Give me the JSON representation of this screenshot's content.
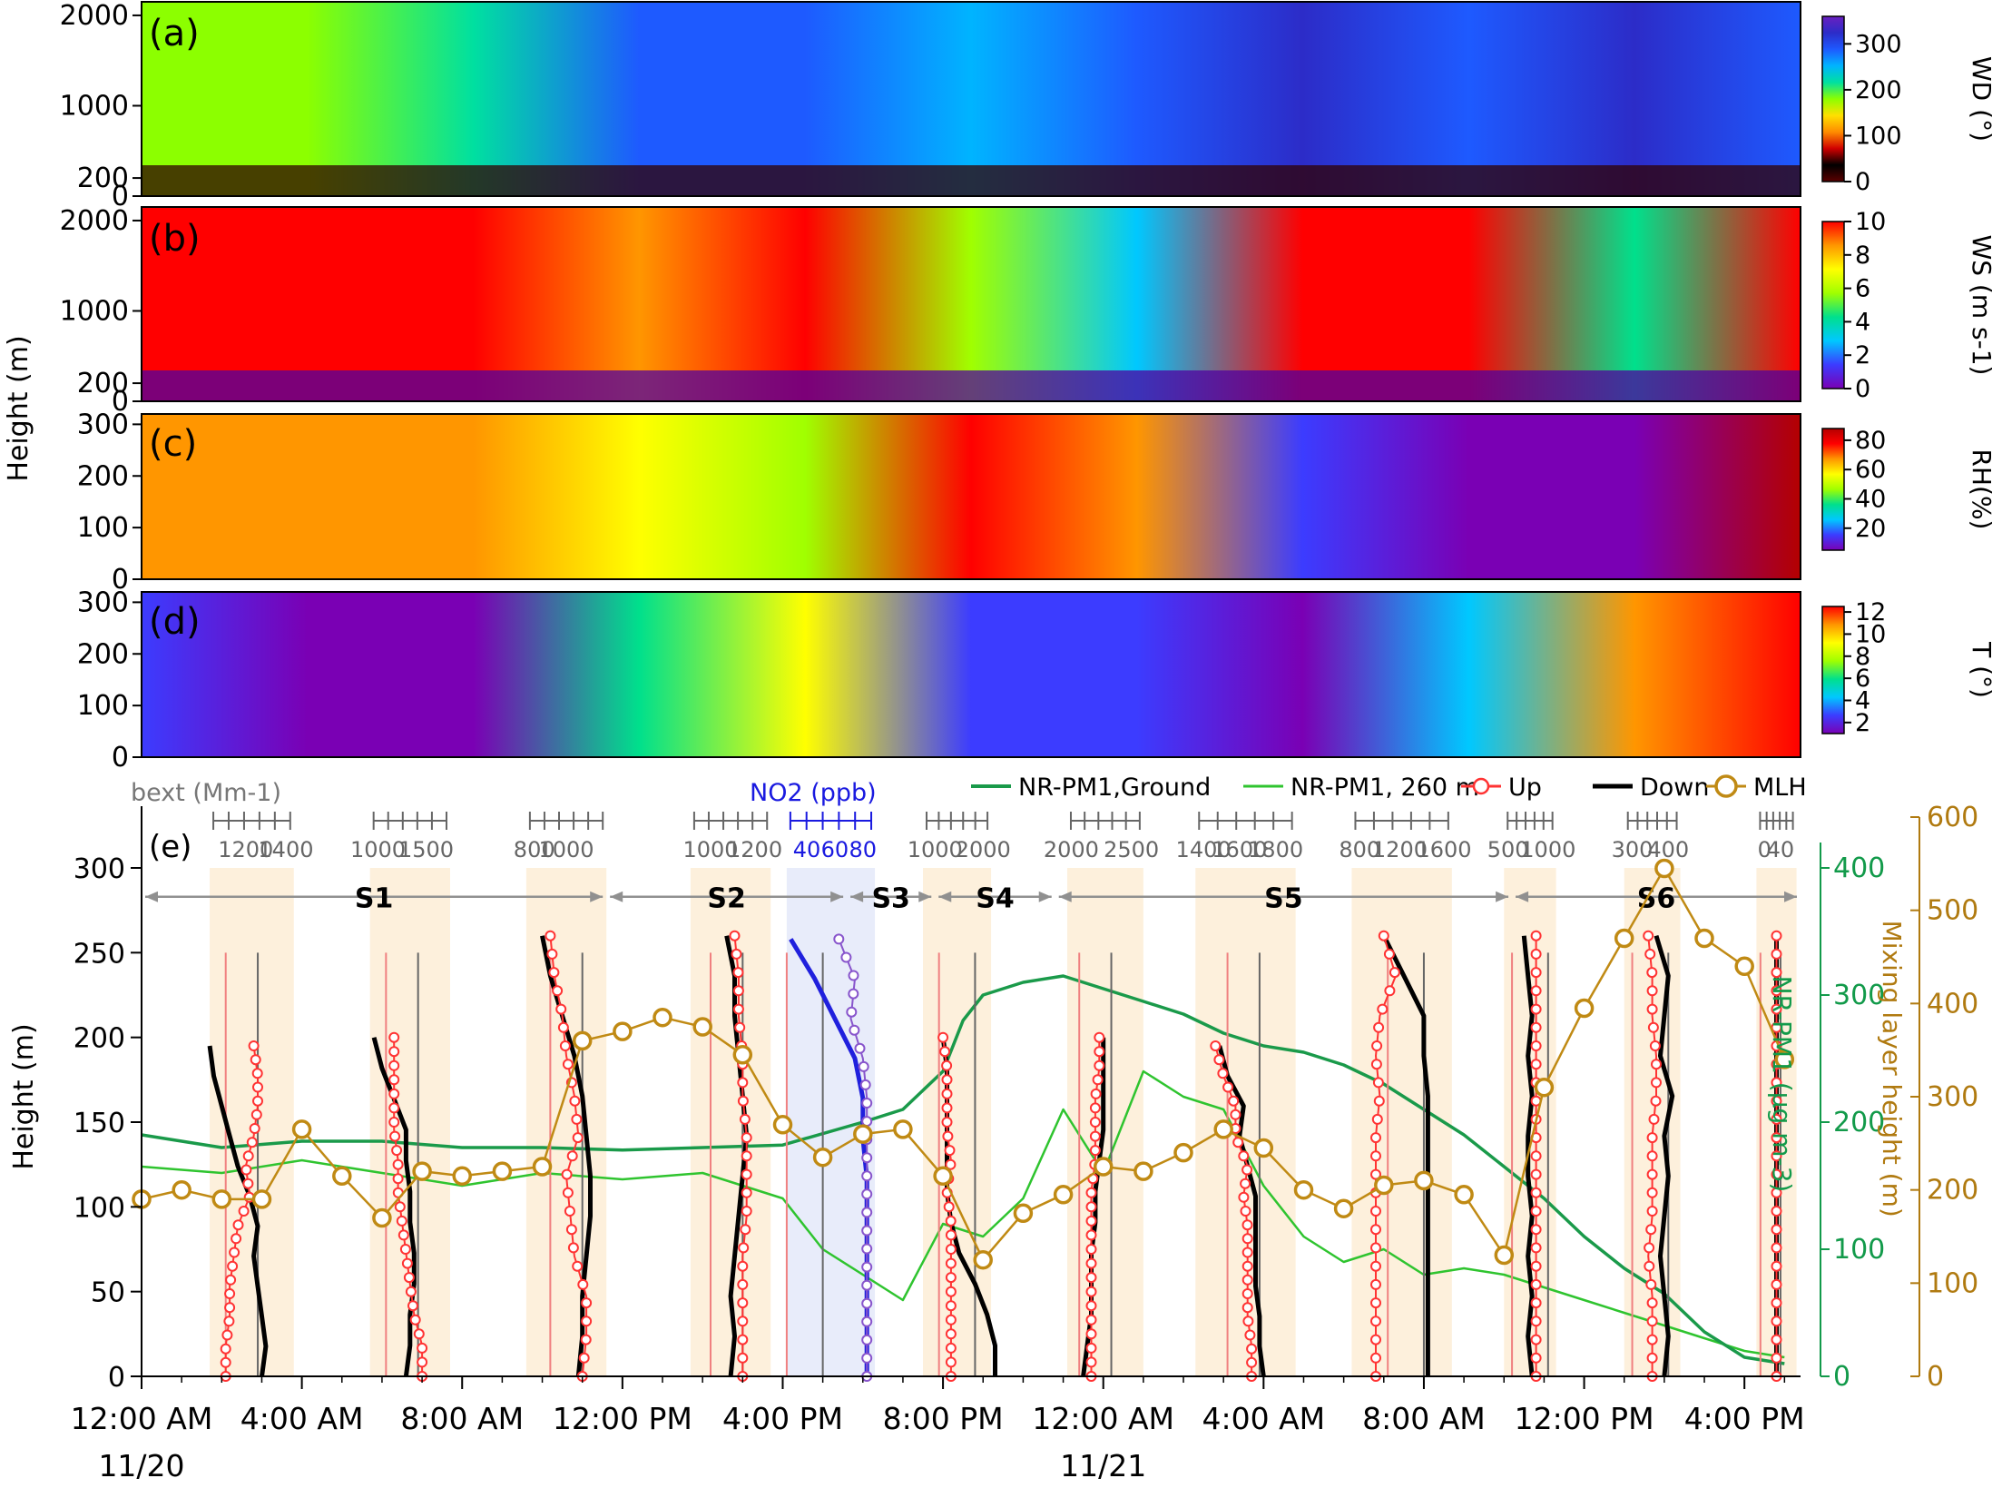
{
  "chart_data": [
    {
      "type": "heatmap",
      "panel_label": "(a)",
      "variable": "WD",
      "colorbar_label": "WD (°)",
      "y_ticks": [
        "2000",
        "1000",
        "200",
        "0"
      ],
      "y_tick_values": [
        2000,
        1000,
        200,
        0
      ],
      "ylim": [
        0,
        2150
      ],
      "colorbar_ticks": [
        "300",
        "200",
        "100",
        "0"
      ],
      "colorbar_tick_values": [
        300,
        200,
        100,
        0
      ],
      "colorbar_range": [
        0,
        360
      ],
      "colormap": [
        "#5a0000",
        "#000000",
        "#d00000",
        "#ff8c00",
        "#ffe000",
        "#8cff00",
        "#00e0a0",
        "#00b4ff",
        "#1e5aff",
        "#2c2cc8",
        "#6a20c0"
      ]
    },
    {
      "type": "heatmap",
      "panel_label": "(b)",
      "variable": "WS",
      "colorbar_label": "WS (m s-1)",
      "y_ticks": [
        "2000",
        "1000",
        "200",
        "0"
      ],
      "y_tick_values": [
        2000,
        1000,
        200,
        0
      ],
      "ylim": [
        0,
        2150
      ],
      "colorbar_ticks": [
        "10",
        "8",
        "6",
        "4",
        "2",
        "0"
      ],
      "colorbar_tick_values": [
        10,
        8,
        6,
        4,
        2,
        0
      ],
      "colorbar_range": [
        0,
        10
      ],
      "colormap": [
        "#7a00b4",
        "#3c3cff",
        "#00c8ff",
        "#00e08c",
        "#a0ff00",
        "#ffff00",
        "#ff9600",
        "#ff0000"
      ]
    },
    {
      "type": "heatmap",
      "panel_label": "(c)",
      "variable": "RH",
      "colorbar_label": "RH(%)",
      "y_ticks": [
        "300",
        "200",
        "100",
        "0"
      ],
      "y_tick_values": [
        300,
        200,
        100,
        0
      ],
      "ylim": [
        0,
        320
      ],
      "colorbar_ticks": [
        "80",
        "60",
        "40",
        "20"
      ],
      "colorbar_tick_values": [
        80,
        60,
        40,
        20
      ],
      "colorbar_range": [
        5,
        88
      ],
      "colormap": [
        "#7a00b4",
        "#3c3cff",
        "#00c8ff",
        "#00e08c",
        "#a0ff00",
        "#ffff00",
        "#ff9600",
        "#ff0000",
        "#b40000"
      ]
    },
    {
      "type": "heatmap",
      "panel_label": "(d)",
      "variable": "T",
      "colorbar_label": "T (°)",
      "y_ticks": [
        "300",
        "200",
        "100",
        "0"
      ],
      "y_tick_values": [
        300,
        200,
        100,
        0
      ],
      "ylim": [
        0,
        320
      ],
      "colorbar_ticks": [
        "12",
        "10",
        "8",
        "6",
        "4",
        "2"
      ],
      "colorbar_tick_values": [
        12,
        10,
        8,
        6,
        4,
        2
      ],
      "colorbar_range": [
        1,
        12.5
      ],
      "colormap": [
        "#7a00b4",
        "#3c3cff",
        "#00c8ff",
        "#00e08c",
        "#a0ff00",
        "#ffff00",
        "#ff9600",
        "#ff0000"
      ]
    },
    {
      "type": "line",
      "panel_label": "(e)",
      "ylabel": "Height (m)",
      "y_ticks": [
        "300",
        "250",
        "200",
        "150",
        "100",
        "50",
        "0"
      ],
      "y_tick_values": [
        300,
        250,
        200,
        150,
        100,
        50,
        0
      ],
      "ylim": [
        0,
        330
      ],
      "y2label_pm": "NR-PM1 (μg m-3)",
      "y2_ticks": [
        "400",
        "300",
        "200",
        "100",
        "0"
      ],
      "y2_tick_values": [
        400,
        300,
        200,
        100,
        0
      ],
      "y2lim": [
        0,
        440
      ],
      "y3label_mlh": "Mixing layer height (m)",
      "y3_ticks": [
        "600",
        "500",
        "400",
        "300",
        "200",
        "100",
        "0"
      ],
      "y3_tick_values": [
        600,
        500,
        400,
        300,
        200,
        100,
        0
      ],
      "y3lim": [
        0,
        600
      ],
      "x_ticks": [
        "12:00 AM",
        "4:00 AM",
        "8:00 AM",
        "12:00 PM",
        "4:00 PM",
        "8:00 PM",
        "12:00 AM",
        "4:00 AM",
        "8:00 AM",
        "12:00 PM",
        "4:00 PM"
      ],
      "x_tick_values": [
        0,
        4,
        8,
        12,
        16,
        20,
        24,
        28,
        32,
        36,
        40
      ],
      "x_date_labels": [
        {
          "x": 0,
          "label": "11/20"
        },
        {
          "x": 24,
          "label": "11/21"
        }
      ],
      "xlim": [
        0,
        41.4
      ],
      "xlabel": "",
      "legend": [
        "NR-PM1,Ground",
        "NR-PM1, 260 m",
        "Up",
        "Down",
        "MLH"
      ],
      "bext_label": "bext (Mm-1)",
      "no2_label": "NO2 (ppb)",
      "segments": [
        {
          "name": "S1",
          "x0": 0.0,
          "x1": 11.6
        },
        {
          "name": "S2",
          "x0": 11.6,
          "x1": 17.6
        },
        {
          "name": "S3",
          "x0": 17.6,
          "x1": 19.8
        },
        {
          "name": "S4",
          "x0": 19.8,
          "x1": 22.8
        },
        {
          "name": "S5",
          "x0": 22.8,
          "x1": 34.2
        },
        {
          "name": "S6",
          "x0": 34.2,
          "x1": 41.4
        }
      ],
      "profiles": [
        {
          "xa": 1.7,
          "xb": 3.8,
          "ticks": [
            "1200",
            "1400"
          ],
          "tick_pos": [
            2.6,
            3.6
          ],
          "ref_up": 2.1,
          "ref_down": 2.9,
          "top": 195,
          "up": [
            2.1,
            2.1,
            2.2,
            2.2,
            2.3,
            2.4,
            2.7,
            2.6,
            2.8,
            2.9,
            2.9,
            2.8
          ],
          "down": [
            3.0,
            3.1,
            3.0,
            2.9,
            2.8,
            2.9,
            2.7,
            2.4,
            2.2,
            2.0,
            1.8,
            1.7
          ]
        },
        {
          "xa": 5.7,
          "xb": 7.7,
          "ticks": [
            "1000",
            "1500"
          ],
          "tick_pos": [
            5.9,
            7.1
          ],
          "ref_up": 6.1,
          "ref_down": 6.9,
          "top": 200,
          "up": [
            7.0,
            7.0,
            6.8,
            6.7,
            6.6,
            6.5,
            6.4,
            6.4,
            6.3,
            6.3,
            6.3,
            6.3
          ],
          "down": [
            6.6,
            6.7,
            6.7,
            6.8,
            6.8,
            6.7,
            6.7,
            6.6,
            6.6,
            6.3,
            6.0,
            5.8
          ]
        },
        {
          "xa": 9.6,
          "xb": 11.6,
          "ticks": [
            "800",
            "1000"
          ],
          "tick_pos": [
            9.8,
            10.6
          ],
          "ref_up": 10.2,
          "ref_down": 11.0,
          "top": 260,
          "up": [
            11.0,
            11.1,
            11.1,
            10.8,
            10.7,
            10.6,
            10.9,
            10.8,
            10.6,
            10.5,
            10.3,
            10.2
          ],
          "down": [
            10.9,
            11.0,
            11.0,
            11.1,
            11.2,
            11.2,
            11.1,
            11.0,
            10.8,
            10.5,
            10.2,
            10.0
          ]
        },
        {
          "xa": 13.7,
          "xb": 15.7,
          "ticks": [
            "1000",
            "1200"
          ],
          "tick_pos": [
            14.2,
            15.3
          ],
          "ref_up": 14.2,
          "ref_down": 15.0,
          "top": 260,
          "up": [
            15.0,
            15.0,
            15.0,
            15.0,
            15.1,
            15.1,
            15.1,
            15.0,
            15.0,
            14.9,
            14.9,
            14.8
          ],
          "down": [
            14.7,
            14.8,
            14.7,
            14.8,
            14.9,
            15.0,
            15.1,
            15.0,
            14.9,
            14.8,
            14.8,
            14.6
          ]
        },
        {
          "xa": 16.1,
          "xb": 18.3,
          "ticks": [
            "40",
            "60",
            "80"
          ],
          "tick_pos": [
            16.6,
            17.3,
            18.0
          ],
          "ref_up": 16.1,
          "ref_down": 17.0,
          "top": 258,
          "up": [
            18.1,
            18.1,
            18.1,
            18.1,
            18.1,
            18.1,
            18.1,
            18.1,
            18.0,
            17.7,
            17.8,
            17.4
          ],
          "down": [
            18.1,
            18.1,
            18.1,
            18.1,
            18.1,
            18.1,
            18.0,
            18.0,
            17.8,
            17.3,
            16.8,
            16.2
          ]
        },
        {
          "xa": 19.5,
          "xb": 21.2,
          "ticks": [
            "1000",
            "2000"
          ],
          "tick_pos": [
            19.8,
            21.0
          ],
          "ref_up": 19.9,
          "ref_down": 20.8,
          "top": 200,
          "up": [
            20.2,
            20.2,
            20.2,
            20.2,
            20.2,
            20.2,
            20.1,
            20.2,
            20.1,
            20.1,
            20.1,
            20.0
          ],
          "down": [
            21.3,
            21.3,
            21.1,
            20.8,
            20.4,
            20.2,
            20.1,
            20.1,
            20.1,
            20.1,
            20.1,
            20.0
          ]
        },
        {
          "xa": 23.1,
          "xb": 25.0,
          "ticks": [
            "2000",
            "2500"
          ],
          "tick_pos": [
            23.2,
            24.7
          ],
          "ref_up": 23.4,
          "ref_down": 24.2,
          "top": 200,
          "up": [
            23.7,
            23.7,
            23.7,
            23.7,
            23.7,
            23.7,
            23.7,
            23.8,
            23.8,
            23.8,
            23.9,
            23.9
          ],
          "down": [
            23.5,
            23.6,
            23.7,
            23.7,
            23.7,
            23.8,
            23.8,
            23.9,
            24.0,
            24.0,
            24.0,
            24.0
          ]
        },
        {
          "xa": 26.3,
          "xb": 28.8,
          "ticks": [
            "1400",
            "1600",
            "1800"
          ],
          "tick_pos": [
            26.5,
            27.4,
            28.3
          ],
          "ref_up": 27.1,
          "ref_down": 27.9,
          "top": 195,
          "up": [
            27.7,
            27.7,
            27.6,
            27.6,
            27.6,
            27.6,
            27.5,
            27.6,
            27.3,
            27.3,
            27.0,
            26.8
          ],
          "down": [
            28.0,
            27.9,
            27.9,
            27.8,
            27.8,
            27.8,
            27.8,
            27.6,
            27.4,
            27.5,
            27.1,
            26.9
          ]
        },
        {
          "xa": 30.2,
          "xb": 32.7,
          "ticks": [
            "800",
            "1200",
            "1600"
          ],
          "tick_pos": [
            30.4,
            31.4,
            32.5
          ],
          "ref_up": 31.1,
          "ref_down": 32.0,
          "top": 260,
          "up": [
            30.8,
            30.8,
            30.8,
            30.8,
            30.8,
            30.8,
            30.8,
            30.9,
            30.8,
            30.9,
            31.3,
            31.0
          ],
          "down": [
            32.1,
            32.1,
            32.1,
            32.1,
            32.1,
            32.1,
            32.1,
            32.1,
            32.0,
            32.0,
            31.5,
            31.0
          ]
        },
        {
          "xa": 34.0,
          "xb": 35.3,
          "ticks": [
            "500",
            "1000"
          ],
          "tick_pos": [
            34.1,
            35.1
          ],
          "ref_up": 34.2,
          "ref_down": 35.1,
          "top": 260,
          "up": [
            34.8,
            34.8,
            34.8,
            34.8,
            34.8,
            34.8,
            34.8,
            34.8,
            34.8,
            34.8,
            34.8,
            34.8
          ],
          "down": [
            34.7,
            34.6,
            34.7,
            34.6,
            34.7,
            34.6,
            34.6,
            34.7,
            34.6,
            34.7,
            34.6,
            34.5
          ]
        },
        {
          "xa": 37.0,
          "xb": 38.4,
          "ticks": [
            "300",
            "400"
          ],
          "tick_pos": [
            37.2,
            38.1
          ],
          "ref_up": 37.2,
          "ref_down": 38.1,
          "top": 260,
          "up": [
            37.7,
            37.7,
            37.7,
            37.6,
            37.7,
            37.7,
            37.7,
            37.8,
            37.8,
            37.7,
            37.7,
            37.6
          ],
          "down": [
            38.0,
            38.1,
            38.0,
            37.9,
            38.0,
            38.1,
            38.0,
            38.2,
            37.9,
            38.0,
            38.1,
            37.8
          ]
        },
        {
          "xa": 40.3,
          "xb": 41.3,
          "ticks": [
            "0",
            "40"
          ],
          "tick_pos": [
            40.5,
            40.9
          ],
          "ref_up": 40.4,
          "ref_down": 40.9,
          "top": 260,
          "up": [
            40.8,
            40.8,
            40.8,
            40.8,
            40.8,
            40.8,
            40.8,
            40.8,
            40.8,
            40.8,
            40.8,
            40.8
          ],
          "down": [
            40.8,
            40.8,
            40.8,
            40.8,
            40.8,
            40.8,
            40.8,
            40.8,
            40.8,
            40.8,
            40.8,
            40.8
          ]
        }
      ],
      "mlh": {
        "x": [
          0.0,
          1.0,
          2.0,
          3.0,
          4.0,
          5.0,
          6.0,
          7.0,
          8.0,
          9.0,
          10.0,
          11.0,
          12.0,
          13.0,
          14.0,
          15.0,
          16.0,
          17.0,
          18.0,
          19.0,
          20.0,
          21.0,
          22.0,
          23.0,
          24.0,
          25.0,
          26.0,
          27.0,
          28.0,
          29.0,
          30.0,
          31.0,
          32.0,
          33.0,
          34.0,
          35.0,
          36.0,
          37.0,
          38.0,
          39.0,
          40.0,
          41.0
        ],
        "values": [
          190,
          200,
          190,
          190,
          265,
          215,
          170,
          220,
          215,
          220,
          225,
          360,
          370,
          385,
          375,
          345,
          270,
          235,
          260,
          265,
          215,
          125,
          175,
          195,
          225,
          220,
          240,
          265,
          245,
          200,
          180,
          205,
          210,
          195,
          130,
          310,
          395,
          470,
          545,
          470,
          440,
          340
        ]
      },
      "pm_ground": {
        "x": [
          0,
          2,
          4,
          6,
          8,
          10,
          12,
          14,
          16,
          18,
          19,
          20,
          20.5,
          21,
          22,
          23,
          24,
          25,
          26,
          27,
          28,
          29,
          30,
          31,
          32,
          33,
          34,
          35,
          36,
          37,
          38,
          39,
          40,
          41
        ],
        "values": [
          190,
          180,
          185,
          185,
          180,
          180,
          178,
          180,
          182,
          200,
          210,
          240,
          280,
          300,
          310,
          315,
          305,
          295,
          285,
          270,
          260,
          255,
          245,
          230,
          210,
          190,
          165,
          140,
          110,
          85,
          65,
          35,
          15,
          10
        ]
      },
      "pm_260m": {
        "x": [
          0,
          2,
          4,
          6,
          8,
          10,
          12,
          14,
          16,
          17,
          18,
          19,
          20,
          21,
          22,
          23,
          24,
          25,
          26,
          27,
          28,
          29,
          30,
          31,
          32,
          33,
          34,
          35,
          36,
          37,
          38,
          39,
          40,
          41
        ],
        "values": [
          165,
          160,
          170,
          160,
          150,
          160,
          155,
          160,
          140,
          100,
          80,
          60,
          120,
          110,
          140,
          210,
          160,
          240,
          220,
          210,
          150,
          110,
          90,
          100,
          80,
          85,
          80,
          70,
          60,
          50,
          40,
          30,
          20,
          15
        ]
      },
      "colors": {
        "up": "#ff3333",
        "down": "#000000",
        "pm_ground": "#1a9a4a",
        "pm_260m": "#2fc42f",
        "mlh": "#c08a14",
        "no2_up": "#8855cc",
        "no2_down": "#2020dd",
        "band": "#fdf0dc",
        "band_s3": "#e8ecfa",
        "arrow": "#909090",
        "y3_axis": "#b07a10",
        "y2_axis": "#129a4a"
      }
    }
  ]
}
